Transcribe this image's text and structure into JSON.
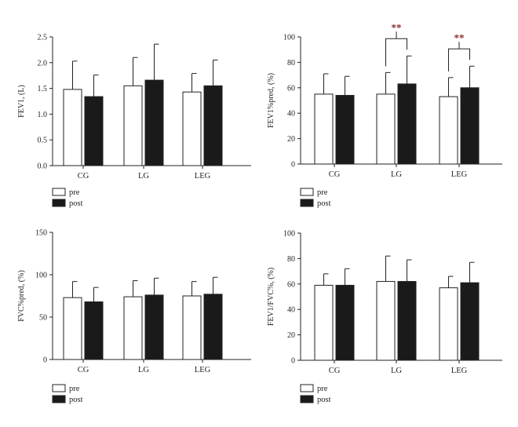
{
  "colors": {
    "pre_fill": "#ffffff",
    "post_fill": "#1a1a1a",
    "stroke": "#222222",
    "sig": "#8a2a2a"
  },
  "legend": {
    "pre": "pre",
    "post": "post"
  },
  "chart_data": [
    {
      "type": "bar",
      "categories": [
        "CG",
        "LG",
        "LEG"
      ],
      "ylabel": "FEV1, (L)",
      "ylim": [
        0,
        2.5
      ],
      "yticks": [
        "0.0",
        "0.5",
        "1.0",
        "1.5",
        "2.0",
        "2.5"
      ],
      "series": [
        {
          "name": "pre",
          "values": [
            1.48,
            1.55,
            1.43
          ],
          "errors": [
            0.55,
            0.55,
            0.36
          ]
        },
        {
          "name": "post",
          "values": [
            1.34,
            1.66,
            1.55
          ],
          "errors": [
            0.42,
            0.7,
            0.5
          ]
        }
      ],
      "significance": []
    },
    {
      "type": "bar",
      "categories": [
        "CG",
        "LG",
        "LEG"
      ],
      "ylabel": "FEV1%pred, (%)",
      "ylim": [
        0,
        100
      ],
      "yticks": [
        "0",
        "20",
        "40",
        "60",
        "80",
        "100"
      ],
      "series": [
        {
          "name": "pre",
          "values": [
            55,
            55,
            53
          ],
          "errors": [
            16,
            17,
            15
          ]
        },
        {
          "name": "post",
          "values": [
            54,
            63,
            60
          ],
          "errors": [
            15,
            22,
            17
          ]
        }
      ],
      "significance": [
        {
          "category": "LG",
          "label": "**"
        },
        {
          "category": "LEG",
          "label": "**"
        }
      ]
    },
    {
      "type": "bar",
      "categories": [
        "CG",
        "LG",
        "LEG"
      ],
      "ylabel": "FVC%pred, (%)",
      "ylim": [
        0,
        150
      ],
      "yticks": [
        "0",
        "50",
        "100",
        "150"
      ],
      "series": [
        {
          "name": "pre",
          "values": [
            73,
            74,
            75
          ],
          "errors": [
            19,
            19,
            17
          ]
        },
        {
          "name": "post",
          "values": [
            68,
            76,
            77
          ],
          "errors": [
            17,
            20,
            20
          ]
        }
      ],
      "significance": []
    },
    {
      "type": "bar",
      "categories": [
        "CG",
        "LG",
        "LEG"
      ],
      "ylabel": "FEV1/FVC%, (%)",
      "ylim": [
        0,
        100
      ],
      "yticks": [
        "0",
        "20",
        "40",
        "60",
        "80",
        "100"
      ],
      "series": [
        {
          "name": "pre",
          "values": [
            59,
            62,
            57
          ],
          "errors": [
            9,
            20,
            9
          ]
        },
        {
          "name": "post",
          "values": [
            59,
            62,
            61
          ],
          "errors": [
            13,
            17,
            16
          ]
        }
      ],
      "significance": []
    }
  ]
}
